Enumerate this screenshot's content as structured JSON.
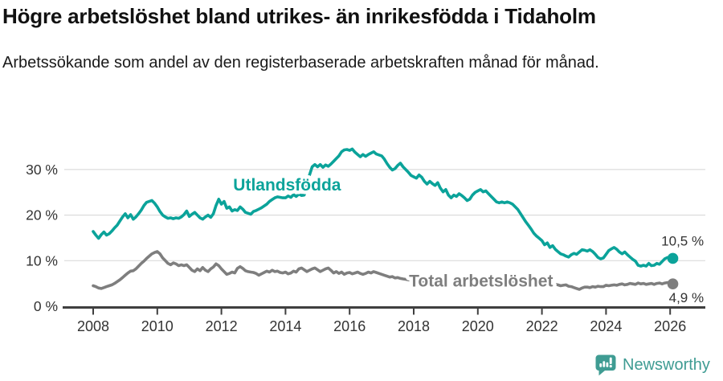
{
  "header": {
    "title": "Högre arbetslöshet bland utrikes- än inrikesfödda i Tidaholm",
    "subtitle": "Arbetssökande som andel av den registerbaserade arbetskraften månad för månad."
  },
  "branding": {
    "wordmark": "Newsworthy",
    "logo_icon": "speech-bubble-bar-chart-icon",
    "color": "#3f9c93"
  },
  "colors": {
    "foreign_born_line": "#0ba39a",
    "total_line": "#7e7e7e",
    "grid": "#dcdcdc",
    "axis": "#3f3f3f",
    "tick_label": "#333333",
    "value_label": "#333333"
  },
  "chart_data": {
    "type": "line",
    "title": "Högre arbetslöshet bland utrikes- än inrikesfödda i Tidaholm",
    "subtitle": "Arbetssökande som andel av den registerbaserade arbetskraften månad för månad.",
    "x_unit": "month",
    "x_start": "2008-01",
    "x_end": "2026-02",
    "xlim": [
      2008,
      2027.1
    ],
    "ylim": [
      0,
      36
    ],
    "grid": "horizontal",
    "legend_position": "inline-labels",
    "xticks": [
      2008,
      2010,
      2012,
      2014,
      2016,
      2018,
      2020,
      2022,
      2024,
      2026
    ],
    "yticks": [
      {
        "v": 0,
        "label": "0 %"
      },
      {
        "v": 10,
        "label": "10 %"
      },
      {
        "v": 20,
        "label": "20 %"
      },
      {
        "v": 30,
        "label": "30 %"
      }
    ],
    "series": [
      {
        "name": "Total arbetslöshet",
        "color": "#7e7e7e",
        "end_value": 4.9,
        "end_label": "4,9 %",
        "values": [
          4.5,
          4.3,
          4.0,
          3.9,
          4.1,
          4.3,
          4.5,
          4.7,
          5.0,
          5.4,
          5.8,
          6.3,
          6.8,
          7.3,
          7.7,
          7.8,
          8.2,
          8.8,
          9.4,
          9.9,
          10.5,
          11.0,
          11.5,
          11.8,
          12.0,
          11.5,
          10.6,
          10.0,
          9.4,
          9.1,
          9.5,
          9.3,
          8.9,
          9.1,
          8.9,
          9.1,
          8.5,
          7.9,
          7.6,
          8.2,
          7.8,
          8.5,
          7.9,
          7.6,
          8.2,
          8.6,
          9.3,
          8.9,
          8.2,
          7.6,
          7.0,
          7.2,
          7.5,
          7.3,
          8.3,
          8.7,
          8.3,
          7.8,
          7.6,
          7.5,
          7.4,
          7.2,
          6.8,
          7.1,
          7.4,
          7.7,
          7.5,
          7.9,
          7.6,
          7.7,
          7.4,
          7.3,
          7.5,
          7.1,
          7.3,
          7.7,
          7.5,
          8.2,
          8.4,
          8.0,
          7.6,
          7.9,
          8.2,
          8.4,
          8.0,
          7.6,
          7.9,
          8.2,
          8.4,
          7.9,
          7.3,
          7.6,
          7.2,
          7.5,
          7.0,
          7.3,
          7.4,
          7.1,
          7.3,
          7.5,
          7.2,
          7.0,
          7.2,
          7.5,
          7.3,
          7.6,
          7.4,
          7.2,
          7.0,
          6.8,
          6.6,
          6.4,
          6.5,
          6.2,
          6.3,
          6.1,
          6.0,
          5.9,
          5.8,
          5.7,
          5.6,
          5.5,
          5.4,
          5.4,
          5.3,
          5.3,
          5.2,
          5.2,
          5.1,
          5.1,
          5.0,
          5.0,
          5.0,
          4.9,
          4.9,
          4.8,
          4.8,
          4.8,
          4.7,
          4.7,
          4.7,
          4.8,
          4.8,
          4.9,
          5.0,
          5.1,
          5.4,
          5.8,
          5.9,
          5.8,
          5.7,
          5.6,
          5.5,
          5.4,
          5.3,
          5.2,
          5.2,
          5.1,
          5.0,
          4.9,
          4.9,
          4.8,
          4.8,
          4.7,
          4.7,
          4.6,
          4.6,
          4.6,
          4.7,
          4.8,
          4.7,
          4.8,
          4.7,
          4.8,
          4.7,
          4.5,
          4.6,
          4.7,
          4.4,
          4.3,
          4.1,
          3.9,
          3.7,
          4.0,
          4.2,
          4.2,
          4.1,
          4.3,
          4.2,
          4.4,
          4.3,
          4.3,
          4.6,
          4.5,
          4.6,
          4.7,
          4.6,
          4.8,
          4.9,
          4.7,
          4.8,
          5.0,
          4.9,
          4.8,
          5.1,
          4.9,
          5.0,
          4.8,
          4.9,
          5.0,
          4.8,
          5.0,
          5.1,
          4.9,
          5.1,
          5.2,
          5.0,
          4.9
        ]
      },
      {
        "name": "Utlandsfödda",
        "color": "#0ba39a",
        "end_value": 10.5,
        "end_label": "10,5 %",
        "values": [
          16.4,
          15.6,
          14.9,
          15.7,
          16.3,
          15.6,
          15.9,
          16.5,
          17.2,
          17.8,
          18.7,
          19.6,
          20.3,
          19.4,
          20.1,
          19.1,
          19.6,
          20.3,
          21.1,
          22.1,
          22.8,
          23.0,
          23.2,
          22.6,
          21.8,
          20.8,
          20.0,
          19.6,
          19.3,
          19.4,
          19.2,
          19.4,
          19.3,
          19.6,
          20.1,
          20.9,
          19.7,
          20.2,
          20.6,
          20.0,
          19.4,
          19.1,
          19.6,
          20.0,
          19.5,
          20.3,
          22.1,
          23.5,
          22.4,
          23.0,
          21.5,
          21.8,
          20.9,
          21.2,
          21.0,
          21.8,
          21.3,
          20.6,
          20.4,
          20.2,
          20.8,
          21.0,
          21.3,
          21.6,
          22.0,
          22.4,
          23.0,
          23.4,
          23.8,
          24.0,
          23.9,
          23.8,
          23.8,
          24.2,
          23.9,
          24.5,
          24.1,
          24.6,
          24.3,
          24.4,
          26.5,
          28.8,
          30.6,
          31.1,
          30.6,
          31.1,
          30.5,
          31.0,
          30.7,
          31.2,
          31.8,
          32.4,
          33.0,
          33.9,
          34.3,
          34.4,
          34.2,
          34.5,
          33.8,
          33.3,
          32.8,
          33.3,
          32.9,
          33.3,
          33.6,
          33.9,
          33.4,
          33.2,
          33.0,
          32.3,
          31.3,
          30.5,
          29.9,
          30.2,
          30.9,
          31.4,
          30.6,
          30.0,
          29.4,
          28.7,
          28.4,
          28.1,
          28.8,
          28.3,
          27.4,
          26.8,
          27.4,
          26.9,
          26.5,
          27.1,
          25.9,
          25.1,
          25.6,
          24.4,
          23.8,
          24.4,
          24.1,
          24.7,
          24.3,
          23.8,
          23.2,
          23.5,
          24.4,
          25.0,
          25.3,
          25.6,
          25.1,
          25.3,
          24.7,
          24.1,
          23.5,
          22.9,
          22.7,
          22.9,
          22.7,
          22.9,
          22.7,
          22.4,
          21.8,
          21.2,
          20.3,
          19.4,
          18.5,
          17.7,
          16.9,
          16.0,
          15.4,
          14.9,
          14.4,
          13.5,
          13.9,
          12.9,
          13.3,
          12.5,
          12.0,
          11.5,
          11.3,
          11.0,
          10.8,
          11.3,
          11.6,
          11.4,
          11.9,
          12.4,
          12.3,
          12.1,
          12.4,
          12.0,
          11.4,
          10.7,
          10.4,
          10.6,
          11.4,
          12.2,
          12.6,
          12.9,
          12.5,
          11.9,
          11.5,
          11.9,
          11.3,
          10.8,
          10.3,
          9.9,
          9.0,
          8.8,
          9.0,
          8.8,
          9.4,
          8.9,
          9.0,
          9.4,
          9.2,
          9.8,
          10.4,
          10.7,
          10.4,
          10.5
        ]
      }
    ],
    "annotations": [
      {
        "text": "Utlandsfödda",
        "x": 2014.05,
        "y": 25.4,
        "color": "#0ba39a",
        "bold": true,
        "size": 21,
        "anchor": "middle",
        "halo": true,
        "name": "series-label-utlandsfodda"
      },
      {
        "text": "Total arbetslöshet",
        "x": 2020.1,
        "y": 4.35,
        "color": "#7e7e7e",
        "bold": true,
        "size": 21,
        "anchor": "middle",
        "halo": true,
        "name": "series-label-total"
      },
      {
        "text": "10,5 %",
        "x": 2027.05,
        "y": 13.35,
        "color": "#333333",
        "bold": false,
        "size": 17,
        "anchor": "end",
        "halo": false,
        "name": "end-value-label-utlandsfodda"
      },
      {
        "text": "4,9 %",
        "x": 2027.05,
        "y": 0.85,
        "color": "#333333",
        "bold": false,
        "size": 17,
        "anchor": "end",
        "halo": false,
        "name": "end-value-label-total"
      }
    ]
  }
}
